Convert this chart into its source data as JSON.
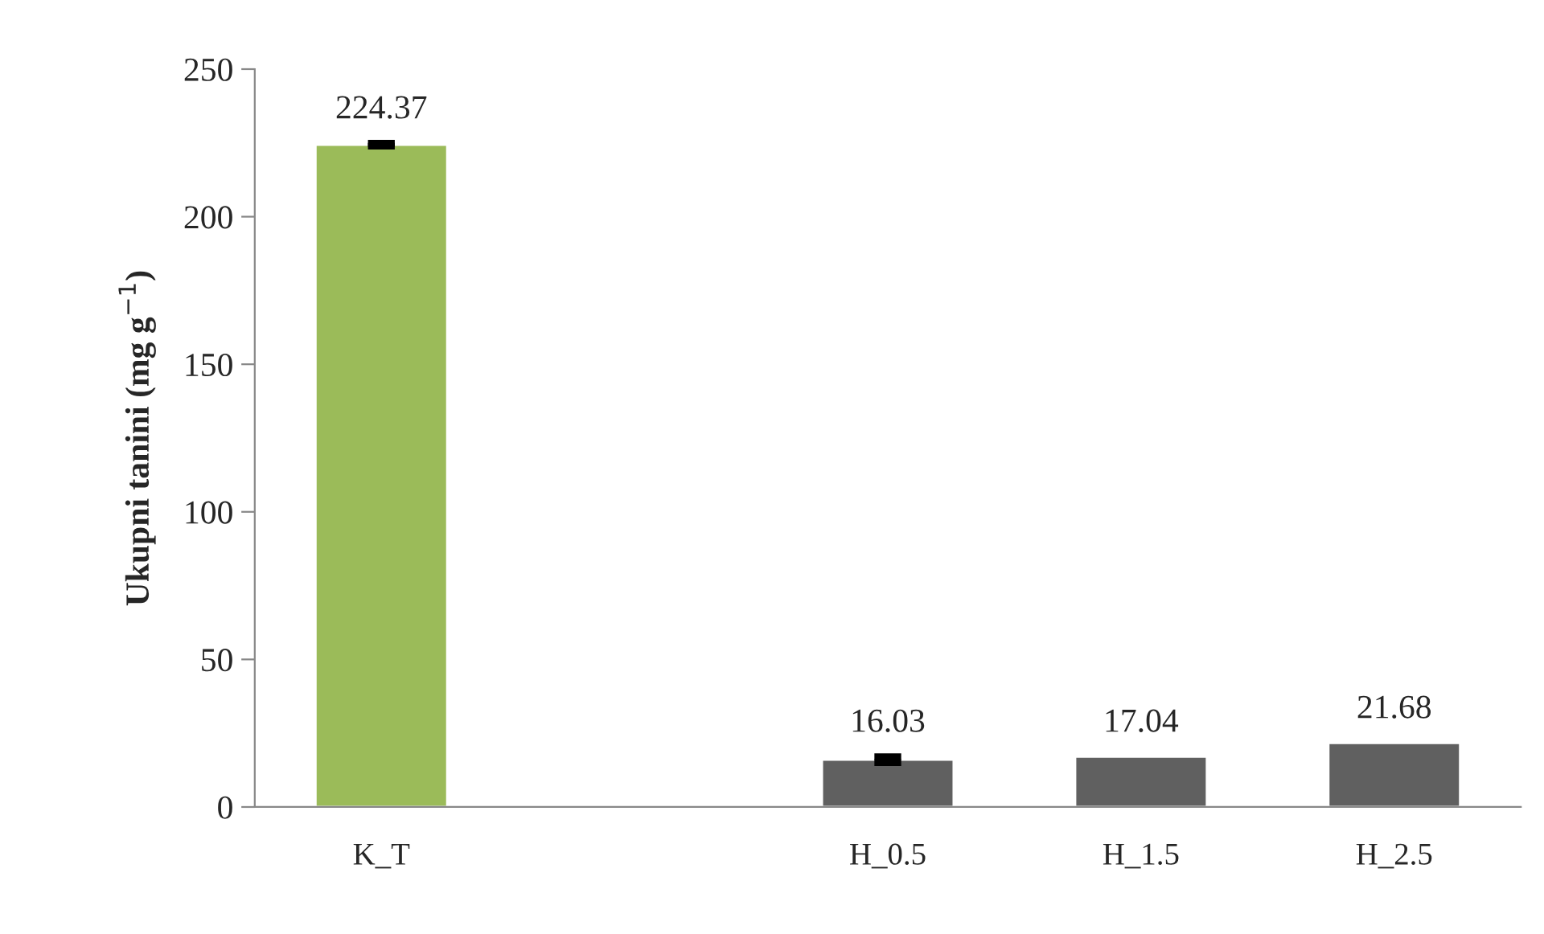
{
  "chart_data": {
    "type": "bar",
    "ylabel": "Ukupni tanini (mg g$^{−1}$)",
    "categories": [
      "K_T",
      null,
      "H_0.5",
      "H_1.5",
      "H_2.5"
    ],
    "values": [
      224.37,
      null,
      16.03,
      17.04,
      21.68
    ],
    "colors": [
      "#9bbb59",
      "#606060",
      "#606060",
      "#606060",
      "#606060"
    ],
    "errors": [
      0.5,
      null,
      1.0,
      null,
      null
    ],
    "data_labels": true,
    "ylim": [
      0,
      250
    ],
    "yticks": [
      0,
      50,
      100,
      150,
      200,
      250
    ],
    "grid": false,
    "legend": false
  }
}
